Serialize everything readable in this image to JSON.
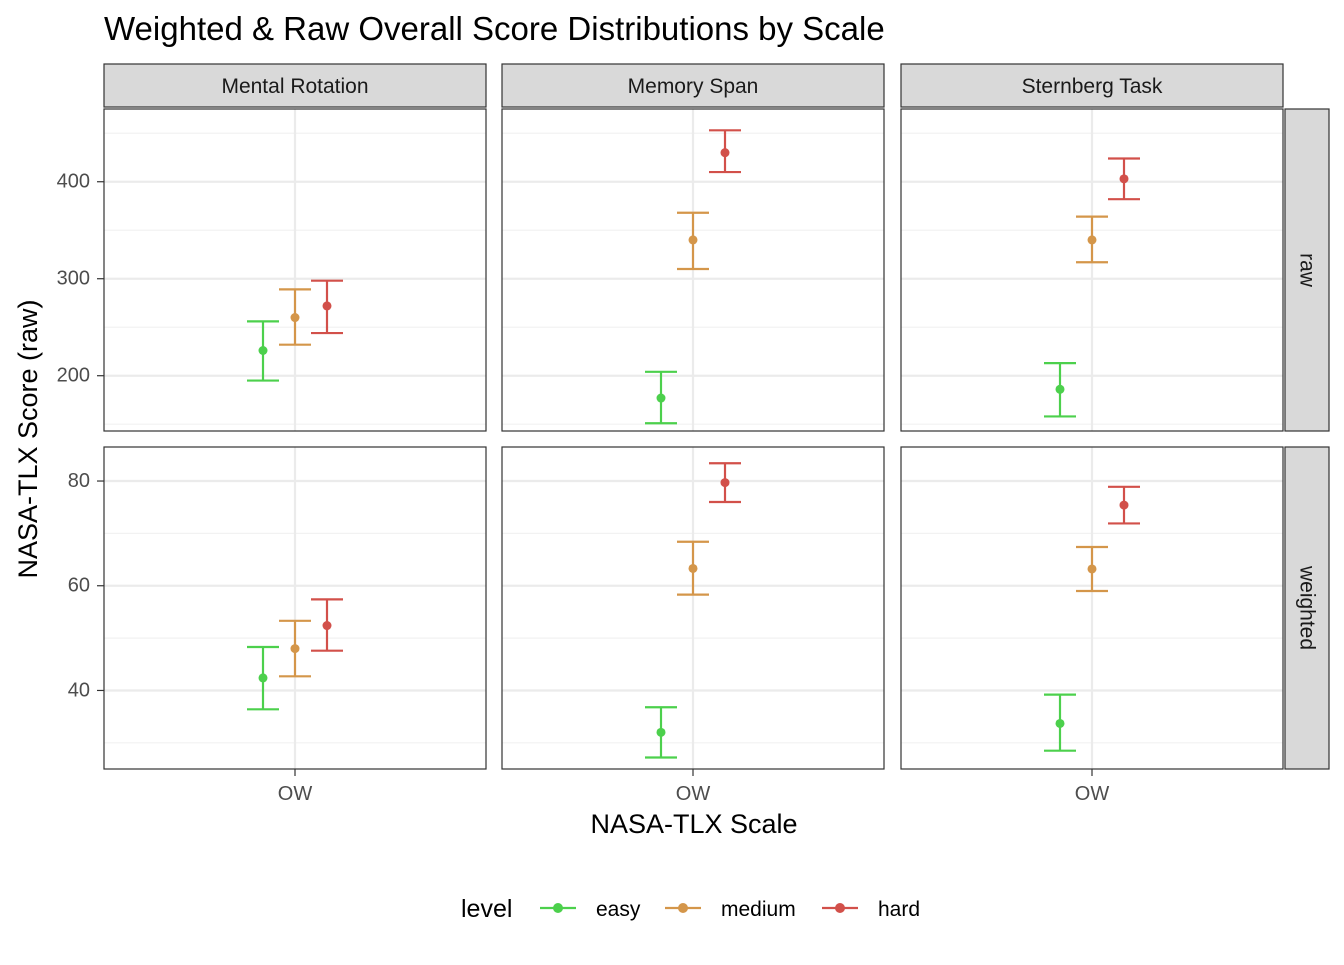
{
  "chart_data": {
    "type": "scatter",
    "subtype": "point-with-errorbars, faceted grid",
    "title": "Weighted & Raw Overall Score Distributions by Scale",
    "xlabel": "NASA-TLX Scale",
    "ylabel": "NASA-TLX Score (raw)",
    "x_category": "OW",
    "legend": {
      "title": "level",
      "position": "bottom",
      "entries": [
        {
          "name": "easy",
          "color": "#4CD04C"
        },
        {
          "name": "medium",
          "color": "#D4964A"
        },
        {
          "name": "hard",
          "color": "#D2504A"
        }
      ]
    },
    "columns": [
      "Mental Rotation",
      "Memory Span",
      "Sternberg Task"
    ],
    "rows": [
      {
        "label": "raw",
        "ylim": [
          143,
          475
        ],
        "yticks": [
          200,
          300,
          400
        ],
        "panels": [
          {
            "column": "Mental Rotation",
            "points": [
              {
                "level": "easy",
                "y": 226,
                "ymin": 195,
                "ymax": 256
              },
              {
                "level": "medium",
                "y": 260,
                "ymin": 232,
                "ymax": 289
              },
              {
                "level": "hard",
                "y": 272,
                "ymin": 244,
                "ymax": 298
              }
            ]
          },
          {
            "column": "Memory Span",
            "points": [
              {
                "level": "easy",
                "y": 177,
                "ymin": 151,
                "ymax": 204
              },
              {
                "level": "medium",
                "y": 340,
                "ymin": 310,
                "ymax": 368
              },
              {
                "level": "hard",
                "y": 430,
                "ymin": 410,
                "ymax": 453
              }
            ]
          },
          {
            "column": "Sternberg Task",
            "points": [
              {
                "level": "easy",
                "y": 186,
                "ymin": 158,
                "ymax": 213
              },
              {
                "level": "medium",
                "y": 340,
                "ymin": 317,
                "ymax": 364
              },
              {
                "level": "hard",
                "y": 403,
                "ymin": 382,
                "ymax": 424
              }
            ]
          }
        ]
      },
      {
        "label": "weighted",
        "ylim": [
          25,
          86.5
        ],
        "yticks": [
          40,
          60,
          80
        ],
        "panels": [
          {
            "column": "Mental Rotation",
            "points": [
              {
                "level": "easy",
                "y": 42.4,
                "ymin": 36.4,
                "ymax": 48.3
              },
              {
                "level": "medium",
                "y": 48,
                "ymin": 42.7,
                "ymax": 53.3
              },
              {
                "level": "hard",
                "y": 52.4,
                "ymin": 47.6,
                "ymax": 57.4
              }
            ]
          },
          {
            "column": "Memory Span",
            "points": [
              {
                "level": "easy",
                "y": 32,
                "ymin": 27.2,
                "ymax": 36.8
              },
              {
                "level": "medium",
                "y": 63.3,
                "ymin": 58.3,
                "ymax": 68.4
              },
              {
                "level": "hard",
                "y": 79.7,
                "ymin": 76,
                "ymax": 83.4
              }
            ]
          },
          {
            "column": "Sternberg Task",
            "points": [
              {
                "level": "easy",
                "y": 33.7,
                "ymin": 28.5,
                "ymax": 39.2
              },
              {
                "level": "medium",
                "y": 63.2,
                "ymin": 59,
                "ymax": 67.4
              },
              {
                "level": "hard",
                "y": 75.4,
                "ymin": 71.9,
                "ymax": 78.9
              }
            ]
          }
        ]
      }
    ]
  }
}
